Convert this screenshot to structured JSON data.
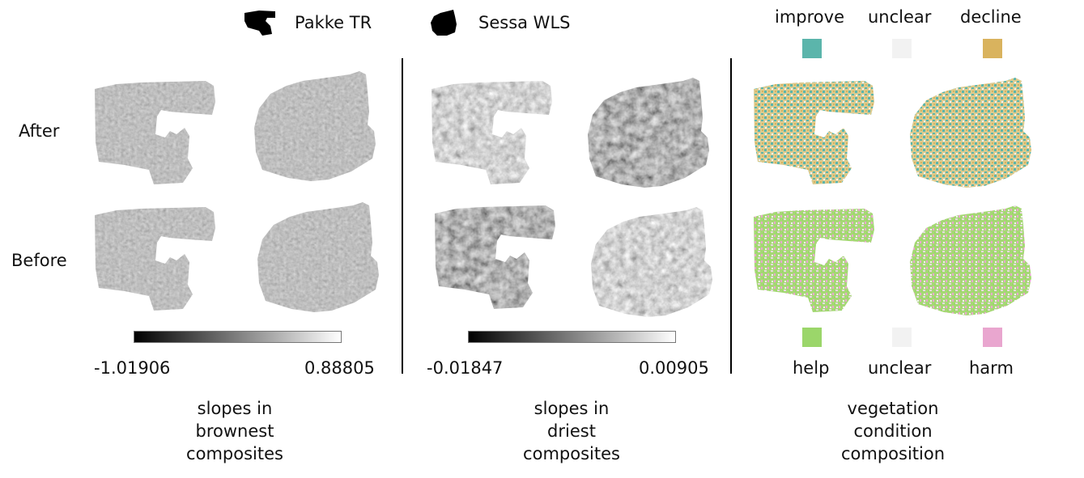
{
  "legend_top": {
    "pakke_label": "Pakke TR",
    "sessa_label": "Sessa WLS"
  },
  "rows": {
    "after_label": "After",
    "before_label": "Before"
  },
  "panel_brownest": {
    "colorbar_min": "-1.01906",
    "colorbar_max": "0.88805",
    "caption": [
      "slopes in",
      "brownest",
      "composites"
    ]
  },
  "panel_driest": {
    "colorbar_min": "-0.01847",
    "colorbar_max": "0.00905",
    "caption": [
      "slopes in",
      "driest",
      "composites"
    ]
  },
  "panel_condition": {
    "top_legend": [
      {
        "label": "improve",
        "color": "#5bb5ab"
      },
      {
        "label": "unclear",
        "color": "#f2f2f2"
      },
      {
        "label": "decline",
        "color": "#d9b35e"
      }
    ],
    "bottom_legend": [
      {
        "label": "help",
        "color": "#9bd66a"
      },
      {
        "label": "unclear",
        "color": "#f2f2f2"
      },
      {
        "label": "harm",
        "color": "#e9a6cf"
      }
    ],
    "caption": [
      "vegetation",
      "condition",
      "composition"
    ]
  }
}
